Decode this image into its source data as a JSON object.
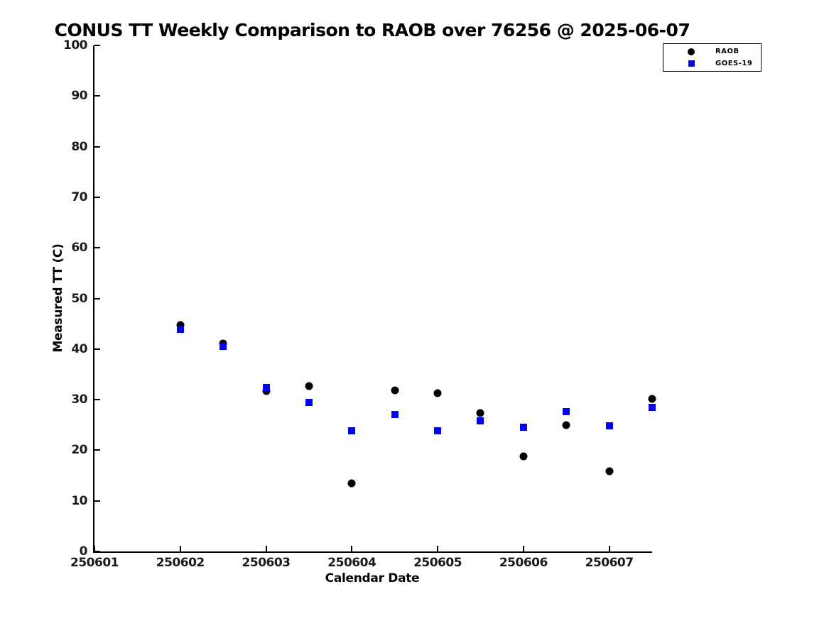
{
  "title": "CONUS TT Weekly Comparison to RAOB over 76256 @ 2025-06-07",
  "chart_data": {
    "type": "scatter",
    "title": "CONUS TT Weekly Comparison to RAOB over 76256 @ 2025-06-07",
    "xlabel": "Calendar Date",
    "ylabel": "Measured TT (C)",
    "xlim": [
      250601,
      250607.5
    ],
    "ylim": [
      0,
      100
    ],
    "x_ticks": [
      250601,
      250602,
      250603,
      250604,
      250605,
      250606,
      250607
    ],
    "y_ticks": [
      0,
      10,
      20,
      30,
      40,
      50,
      60,
      70,
      80,
      90,
      100
    ],
    "grid": false,
    "legend_position": "upper right",
    "x": [
      250602,
      250602.5,
      250603,
      250603.5,
      250604,
      250604.5,
      250605,
      250605.5,
      250606,
      250606.5,
      250607,
      250607.5
    ],
    "series": [
      {
        "name": "RAOB",
        "marker": "circle",
        "color": "#000000",
        "values": [
          44.8,
          41.1,
          31.7,
          32.7,
          13.5,
          31.9,
          31.3,
          27.3,
          18.8,
          25.0,
          15.8,
          30.1
        ]
      },
      {
        "name": "GOES-19",
        "marker": "square",
        "color": "#0202f2",
        "values": [
          43.9,
          40.6,
          32.4,
          29.4,
          23.9,
          27.1,
          23.8,
          25.8,
          24.5,
          27.6,
          24.8,
          28.5
        ]
      }
    ]
  },
  "colors": {
    "raob": "#000000",
    "goes19": "#0202f2",
    "axis": "#000000",
    "background": "#ffffff"
  }
}
